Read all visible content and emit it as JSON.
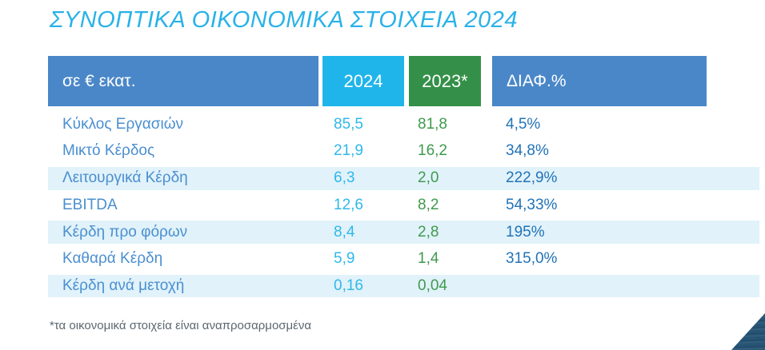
{
  "title": "ΣΥΝΟΠΤΙΚΑ ΟΙΚΟΝΟΜΙΚΑ ΣΤΟΙΧΕΙΑ 2024",
  "table": {
    "headers": {
      "unit": "σε € εκατ.",
      "col_2024": "2024",
      "col_2023": "2023*",
      "col_diff": "ΔΙΑΦ.%"
    },
    "rows": [
      {
        "label": "Κύκλος Εργασιών",
        "y2024": "85,5",
        "y2023": "81,8",
        "diff": "4,5%"
      },
      {
        "label": "Μικτό Κέρδος",
        "y2024": "21,9",
        "y2023": "16,2",
        "diff": "34,8%"
      },
      {
        "label": "Λειτουργικά Κέρδη",
        "y2024": "6,3",
        "y2023": "2,0",
        "diff": "222,9%"
      },
      {
        "label": "EBITDA",
        "y2024": "12,6",
        "y2023": "8,2",
        "diff": "54,33%"
      },
      {
        "label": "Κέρδη προ φόρων",
        "y2024": "8,4",
        "y2023": "2,8",
        "diff": "195%"
      },
      {
        "label": "Καθαρά Κέρδη",
        "y2024": "5,9",
        "y2023": "1,4",
        "diff": "315,0%"
      },
      {
        "label": "Κέρδη ανά μετοχή",
        "y2024": "0,16",
        "y2023": "0,04",
        "diff": ""
      }
    ]
  },
  "footnote": "*τα οικονομικά στοιχεία είναι αναπροσαρμοσμένα",
  "colors": {
    "bg": "#ffffff",
    "title": "#29b2e8",
    "headerBlue": "#4a87c8",
    "cyan": "#1fb5ea",
    "green": "#349048",
    "labelBlue": "#4a8fd0",
    "cyanText": "#2fb8e9",
    "greenText": "#3f9a4d",
    "diffBlue": "#2173b8",
    "rowShade": "#e1f2fa",
    "footnote": "#5c6770",
    "cornerTriangle": "#224e6e"
  }
}
